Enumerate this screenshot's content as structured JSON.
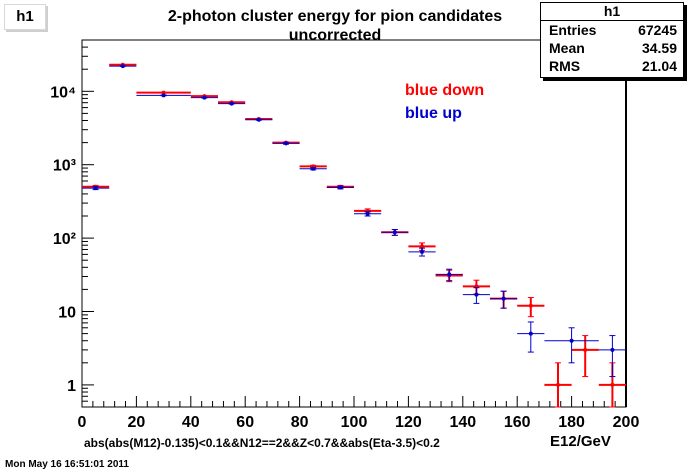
{
  "hist_tag": "h1",
  "title_line1": "2-photon cluster energy for pion candidates",
  "title_line2": "uncorrected",
  "stats": {
    "name": "h1",
    "rows": [
      {
        "label": "Entries",
        "value": "67245"
      },
      {
        "label": "Mean",
        "value": "34.59"
      },
      {
        "label": "RMS",
        "value": "21.04"
      }
    ]
  },
  "cut_text": "abs(abs(M12)-0.135)<0.1&&N12==2&&Z<0.7&&abs(Eta-3.5)<0.2",
  "datestamp": "Mon May 16 16:51:01 2011",
  "colors": {
    "red": "#ff0000",
    "blue": "#0000cc",
    "axis": "#000000"
  },
  "chart_data": {
    "type": "scatter",
    "xlabel": "E12/GeV",
    "ylabel": "",
    "xlim": [
      0,
      200
    ],
    "ylim": [
      0.5,
      50000
    ],
    "yscale": "log",
    "x_ticks": [
      "0",
      "20",
      "40",
      "60",
      "80",
      "100",
      "120",
      "140",
      "160",
      "180",
      "200"
    ],
    "y_ticks": [
      {
        "value": 1,
        "label": "1"
      },
      {
        "value": 10,
        "label": "10"
      },
      {
        "value": 100,
        "label": "10²"
      },
      {
        "value": 1000,
        "label": "10³"
      },
      {
        "value": 10000,
        "label": "10⁴"
      }
    ],
    "legend_placement": "top-right",
    "series": [
      {
        "name": "blue down",
        "color": "#ff0000",
        "points": [
          {
            "xlo": 0,
            "xhi": 10,
            "y": 500,
            "err": 22
          },
          {
            "xlo": 10,
            "xhi": 20,
            "y": 23000,
            "err": 150
          },
          {
            "xlo": 20,
            "xhi": 40,
            "y": 9600,
            "err": 100
          },
          {
            "xlo": 40,
            "xhi": 50,
            "y": 8600,
            "err": 93
          },
          {
            "xlo": 50,
            "xhi": 60,
            "y": 7100,
            "err": 84
          },
          {
            "xlo": 60,
            "xhi": 70,
            "y": 4200,
            "err": 65
          },
          {
            "xlo": 70,
            "xhi": 80,
            "y": 2000,
            "err": 45
          },
          {
            "xlo": 80,
            "xhi": 90,
            "y": 950,
            "err": 31
          },
          {
            "xlo": 90,
            "xhi": 100,
            "y": 500,
            "err": 22
          },
          {
            "xlo": 100,
            "xhi": 110,
            "y": 235,
            "err": 15
          },
          {
            "xlo": 110,
            "xhi": 120,
            "y": 120,
            "err": 11
          },
          {
            "xlo": 120,
            "xhi": 130,
            "y": 77,
            "err": 9
          },
          {
            "xlo": 130,
            "xhi": 140,
            "y": 31,
            "err": 5.5
          },
          {
            "xlo": 140,
            "xhi": 150,
            "y": 22,
            "err": 4.7
          },
          {
            "xlo": 150,
            "xhi": 160,
            "y": 15,
            "err": 3.9
          },
          {
            "xlo": 160,
            "xhi": 170,
            "y": 12,
            "err": 3.5
          },
          {
            "xlo": 170,
            "xhi": 180,
            "y": 1,
            "err": 1
          },
          {
            "xlo": 180,
            "xhi": 190,
            "y": 3,
            "err": 1.7
          },
          {
            "xlo": 190,
            "xhi": 200,
            "y": 1,
            "err": 1
          }
        ]
      },
      {
        "name": "blue up",
        "color": "#0000cc",
        "points": [
          {
            "xlo": 0,
            "xhi": 10,
            "y": 480,
            "err": 22
          },
          {
            "xlo": 10,
            "xhi": 20,
            "y": 22000,
            "err": 148
          },
          {
            "xlo": 20,
            "xhi": 40,
            "y": 8800,
            "err": 94
          },
          {
            "xlo": 40,
            "xhi": 50,
            "y": 8200,
            "err": 90
          },
          {
            "xlo": 50,
            "xhi": 60,
            "y": 6800,
            "err": 82
          },
          {
            "xlo": 60,
            "xhi": 70,
            "y": 4100,
            "err": 64
          },
          {
            "xlo": 70,
            "xhi": 80,
            "y": 1950,
            "err": 44
          },
          {
            "xlo": 80,
            "xhi": 90,
            "y": 880,
            "err": 30
          },
          {
            "xlo": 90,
            "xhi": 100,
            "y": 490,
            "err": 22
          },
          {
            "xlo": 100,
            "xhi": 110,
            "y": 215,
            "err": 15
          },
          {
            "xlo": 110,
            "xhi": 120,
            "y": 120,
            "err": 11
          },
          {
            "xlo": 120,
            "xhi": 130,
            "y": 65,
            "err": 8
          },
          {
            "xlo": 130,
            "xhi": 140,
            "y": 32,
            "err": 5.7
          },
          {
            "xlo": 140,
            "xhi": 150,
            "y": 17,
            "err": 4.1
          },
          {
            "xlo": 150,
            "xhi": 160,
            "y": 15,
            "err": 3.9
          },
          {
            "xlo": 160,
            "xhi": 170,
            "y": 5,
            "err": 2.2
          },
          {
            "xlo": 170,
            "xhi": 190,
            "y": 4,
            "err": 2
          },
          {
            "xlo": 190,
            "xhi": 200,
            "y": 3,
            "err": 1.7
          }
        ]
      }
    ]
  }
}
